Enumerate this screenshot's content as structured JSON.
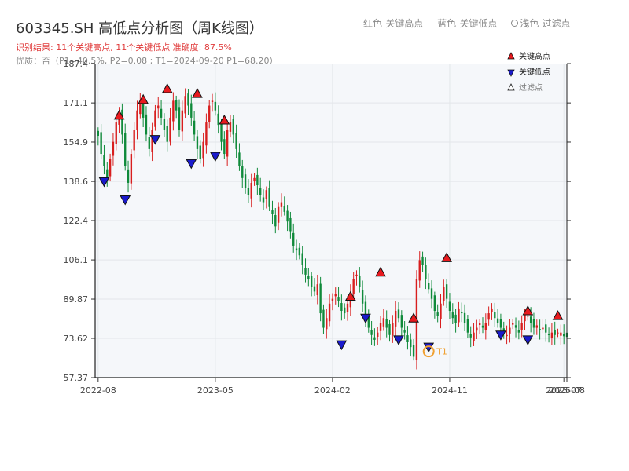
{
  "header": {
    "title": "603345.SH 高低点分析图（周K线图）",
    "result_line": "识别结果: 11个关键高点, 11个关键低点   准确度: 87.5%",
    "quality_line": "优质：否（P1=40.5%, P2=0.08 ; T1=2024-09-20 P1=68.20）"
  },
  "top_legend": {
    "red": "红色-关键高点",
    "blue": "蓝色-关键低点",
    "light": "浅色-过滤点"
  },
  "colors": {
    "up": "#d81e1e",
    "down": "#0f8a3a",
    "high_marker": "#e8191e",
    "low_marker": "#1a1acc",
    "annotation": "#f0a030",
    "plot_bg": "#f5f7fa",
    "grid": "#e3e6ea"
  },
  "chart_data": {
    "type": "candlestick",
    "title": "603345.SH 高低点分析图（周K线图）",
    "y_ticks": [
      57.37,
      73.62,
      89.87,
      106.1,
      122.4,
      138.6,
      154.9,
      171.1,
      187.4
    ],
    "ylim": [
      57.37,
      187.4
    ],
    "x_ticks": [
      "2022-08",
      "2023-05",
      "2024-02",
      "2024-11",
      "2025-07",
      "2025-08"
    ],
    "x_tick_weeks": [
      0,
      39,
      78,
      117,
      155,
      156
    ],
    "x_range": [
      -1,
      156
    ],
    "grid": true,
    "legend": {
      "position": "top-right",
      "items": [
        {
          "label": "关键高点",
          "marker": "high"
        },
        {
          "label": "关键低点",
          "marker": "low"
        },
        {
          "label": "过滤点",
          "marker": "filtered"
        }
      ]
    },
    "series_closes": [
      157.5,
      150,
      145,
      140,
      148,
      155,
      163,
      167,
      158,
      145,
      138,
      150,
      160,
      168,
      172,
      165,
      158,
      152,
      160,
      168,
      170,
      165,
      160,
      155,
      165,
      172,
      168,
      160,
      168,
      174,
      170,
      165,
      158,
      152,
      148,
      155,
      163,
      170,
      172,
      168,
      162,
      155,
      150,
      160,
      163,
      158,
      152,
      145,
      140,
      136,
      133,
      138,
      140,
      137,
      133,
      130,
      135,
      128,
      125,
      120,
      128,
      130,
      126,
      122,
      118,
      112,
      110,
      108,
      104,
      100,
      98,
      95,
      93,
      96,
      84,
      78,
      82,
      88,
      90,
      92,
      89,
      85,
      84,
      88,
      92,
      98,
      100,
      95,
      88,
      82,
      78,
      75,
      73,
      76,
      80,
      82,
      78,
      75,
      80,
      85,
      82,
      78,
      76,
      72,
      70,
      66,
      98,
      106,
      104,
      98,
      94,
      90,
      85,
      83,
      88,
      95,
      90,
      85,
      82,
      80,
      86,
      84,
      80,
      76,
      74,
      76,
      78,
      80,
      78,
      80,
      84,
      86,
      82,
      80,
      78,
      76,
      75,
      78,
      80,
      78,
      76,
      80,
      84,
      83,
      80,
      78,
      79,
      77,
      78,
      76,
      75,
      76,
      75,
      76,
      76,
      74.5,
      74.2
    ],
    "key_highs": [
      {
        "week": 7,
        "price": 166
      },
      {
        "week": 15,
        "price": 172.5
      },
      {
        "week": 23,
        "price": 177
      },
      {
        "week": 33,
        "price": 175
      },
      {
        "week": 42,
        "price": 164
      },
      {
        "week": 84,
        "price": 91
      },
      {
        "week": 94,
        "price": 101
      },
      {
        "week": 105,
        "price": 82
      },
      {
        "week": 116,
        "price": 107
      },
      {
        "week": 143,
        "price": 85
      },
      {
        "week": 153,
        "price": 83
      }
    ],
    "key_lows": [
      {
        "week": 2,
        "price": 138.5
      },
      {
        "week": 9,
        "price": 131
      },
      {
        "week": 19,
        "price": 156
      },
      {
        "week": 31,
        "price": 146
      },
      {
        "week": 39,
        "price": 149
      },
      {
        "week": 81,
        "price": 71
      },
      {
        "week": 89,
        "price": 82
      },
      {
        "week": 100,
        "price": 73
      },
      {
        "week": 110,
        "price": 70
      },
      {
        "week": 134,
        "price": 75
      },
      {
        "week": 143,
        "price": 73
      }
    ],
    "annotations": [
      {
        "label": "T1",
        "date": "2024-09-20",
        "week": 110,
        "price": 68.2
      }
    ]
  }
}
